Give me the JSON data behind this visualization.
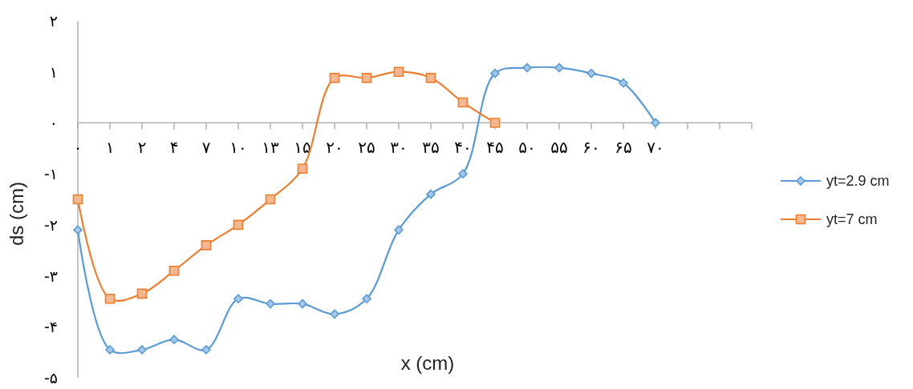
{
  "chart_data": {
    "type": "line",
    "xlabel": "x (cm)",
    "ylabel": "ds (cm)",
    "categories": [
      "۰",
      "۱",
      "۲",
      "۴",
      "۷",
      "۱۰",
      "۱۳",
      "۱۵",
      "۲۰",
      "۲۵",
      "۳۰",
      "۳۵",
      "۴۰",
      "۴۵",
      "۵۰",
      "۵۵",
      "۶۰",
      "۶۵",
      "۷۰",
      null,
      null,
      null
    ],
    "series": [
      {
        "name": "yt=2.9 cm",
        "color": "#5b9bd5",
        "marker": "diamond",
        "values": [
          -2.1,
          -4.45,
          -4.45,
          -4.25,
          -4.45,
          -3.45,
          -3.55,
          -3.55,
          -3.75,
          -3.45,
          -2.1,
          -1.4,
          -1.0,
          0.97,
          1.08,
          1.08,
          0.97,
          0.78,
          0,
          null,
          null,
          null
        ]
      },
      {
        "name": "yt=7 cm",
        "color": "#ed7d31",
        "marker": "square",
        "values": [
          -1.5,
          -3.45,
          -3.35,
          -2.9,
          -2.4,
          -2.0,
          -1.5,
          -0.9,
          0.88,
          0.88,
          1.0,
          0.88,
          0.4,
          0,
          null,
          null,
          null,
          null,
          null,
          null,
          null,
          null
        ]
      }
    ],
    "ylim": [
      -5,
      2
    ],
    "yticks": [
      {
        "value": -5,
        "label": "-۵"
      },
      {
        "value": -4,
        "label": "-۴"
      },
      {
        "value": -3,
        "label": "-۳"
      },
      {
        "value": -2,
        "label": "-۲"
      },
      {
        "value": -1,
        "label": "-۱"
      },
      {
        "value": 0,
        "label": "۰"
      },
      {
        "value": 1,
        "label": "۱"
      },
      {
        "value": 2,
        "label": "۲"
      }
    ],
    "legend": "right",
    "line_style": "solid"
  }
}
